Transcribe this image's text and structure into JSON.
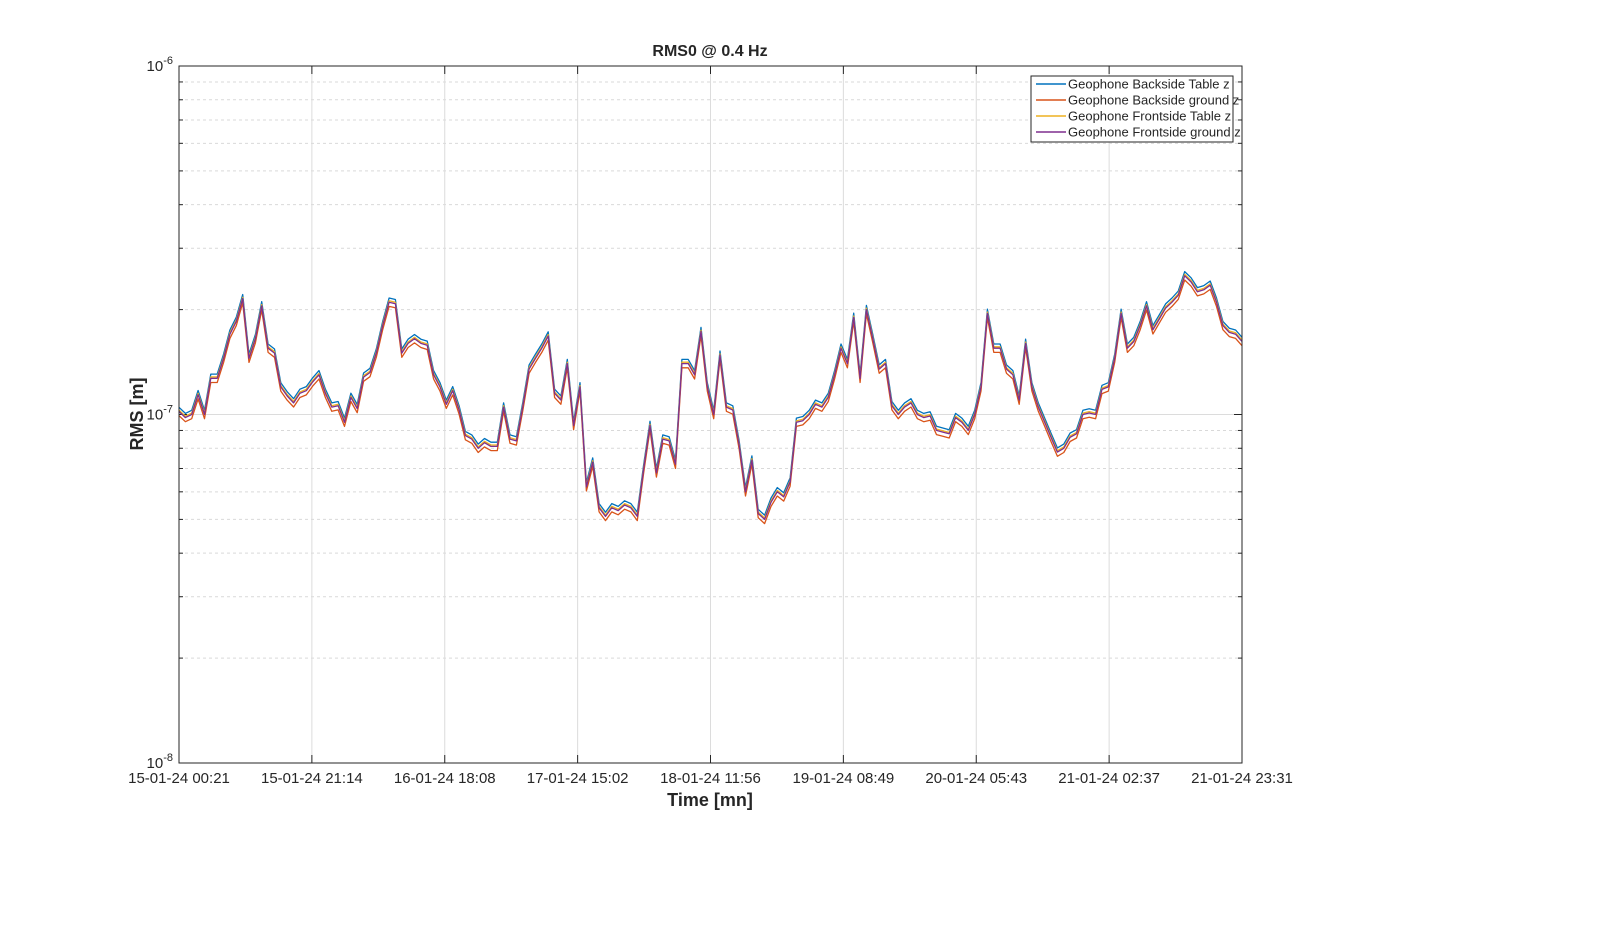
{
  "chart_data": {
    "type": "line",
    "title": "RMS0 @ 0.4 Hz",
    "xlabel": "Time [mn]",
    "ylabel": "RMS [m]",
    "yscale": "log",
    "ylim": [
      1e-08,
      1e-06
    ],
    "x_tick_labels": [
      "15-01-24 00:21",
      "15-01-24 21:14",
      "16-01-24 18:08",
      "17-01-24 15:02",
      "18-01-24 11:56",
      "19-01-24 08:49",
      "20-01-24 05:43",
      "21-01-24 02:37",
      "21-01-24 23:31"
    ],
    "y_tick_labels": [
      {
        "base": "10",
        "exp": "-8",
        "value": 1e-08
      },
      {
        "base": "10",
        "exp": "-7",
        "value": 1e-07
      },
      {
        "base": "10",
        "exp": "-6",
        "value": 1e-06
      }
    ],
    "grid": true,
    "legend_position": "top-right",
    "series": [
      {
        "name": "Geophone Backside Table z",
        "color": "#0072BD",
        "offset": 0.012
      },
      {
        "name": "Geophone Backside ground z",
        "color": "#D95319",
        "offset": -0.012
      },
      {
        "name": "Geophone Frontside Table z",
        "color": "#EDB120",
        "offset": 0.004
      },
      {
        "name": "Geophone Frontside ground z",
        "color": "#7E2F8E",
        "offset": 0.0
      }
    ],
    "x_start": "15-01-24 00:21",
    "x_end": "21-01-24 23:31",
    "y_series_base": [
      1.02e-07,
      9.8e-08,
      1e-07,
      1.14e-07,
      1e-07,
      1.27e-07,
      1.27e-07,
      1.45e-07,
      1.7e-07,
      1.85e-07,
      2.15e-07,
      1.45e-07,
      1.65e-07,
      2.05e-07,
      1.55e-07,
      1.5e-07,
      1.2e-07,
      1.13e-07,
      1.08e-07,
      1.15e-07,
      1.17e-07,
      1.24e-07,
      1.3e-07,
      1.15e-07,
      1.05e-07,
      1.06e-07,
      9.5e-08,
      1.12e-07,
      1.04e-07,
      1.28e-07,
      1.32e-07,
      1.5e-07,
      1.8e-07,
      2.1e-07,
      2.08e-07,
      1.5e-07,
      1.6e-07,
      1.65e-07,
      1.6e-07,
      1.58e-07,
      1.3e-07,
      1.2e-07,
      1.07e-07,
      1.17e-07,
      1.03e-07,
      8.7e-08,
      8.5e-08,
      8e-08,
      8.3e-08,
      8.1e-08,
      8.1e-08,
      1.05e-07,
      8.5e-08,
      8.4e-08,
      1.05e-07,
      1.35e-07,
      1.45e-07,
      1.55e-07,
      1.68e-07,
      1.15e-07,
      1.1e-07,
      1.4e-07,
      9.3e-08,
      1.2e-07,
      6.2e-08,
      7.3e-08,
      5.4e-08,
      5.1e-08,
      5.4e-08,
      5.3e-08,
      5.5e-08,
      5.4e-08,
      5.1e-08,
      7e-08,
      9.3e-08,
      6.8e-08,
      8.5e-08,
      8.4e-08,
      7.2e-08,
      1.4e-07,
      1.4e-07,
      1.3e-07,
      1.73e-07,
      1.2e-07,
      1e-07,
      1.48e-07,
      1.05e-07,
      1.03e-07,
      8.2e-08,
      6e-08,
      7.4e-08,
      5.2e-08,
      5e-08,
      5.6e-08,
      6e-08,
      5.8e-08,
      6.4e-08,
      9.5e-08,
      9.6e-08,
      1e-07,
      1.07e-07,
      1.05e-07,
      1.12e-07,
      1.3e-07,
      1.55e-07,
      1.4e-07,
      1.9e-07,
      1.27e-07,
      2e-07,
      1.65e-07,
      1.35e-07,
      1.4e-07,
      1.06e-07,
      1e-07,
      1.05e-07,
      1.08e-07,
      1e-07,
      9.8e-08,
      9.9e-08,
      9e-08,
      8.9e-08,
      8.8e-08,
      9.8e-08,
      9.5e-08,
      9e-08,
      1e-07,
      1.2e-07,
      1.95e-07,
      1.55e-07,
      1.55e-07,
      1.35e-07,
      1.3e-07,
      1.1e-07,
      1.6e-07,
      1.2e-07,
      1.05e-07,
      9.5e-08,
      8.6e-08,
      7.8e-08,
      8e-08,
      8.6e-08,
      8.8e-08,
      1e-07,
      1.01e-07,
      1e-07,
      1.18e-07,
      1.2e-07,
      1.45e-07,
      1.95e-07,
      1.55e-07,
      1.62e-07,
      1.8e-07,
      2.05e-07,
      1.75e-07,
      1.88e-07,
      2.02e-07,
      2.1e-07,
      2.2e-07,
      2.5e-07,
      2.4e-07,
      2.25e-07,
      2.28e-07,
      2.35e-07,
      2.1e-07,
      1.8e-07,
      1.72e-07,
      1.7e-07,
      1.62e-07
    ]
  }
}
